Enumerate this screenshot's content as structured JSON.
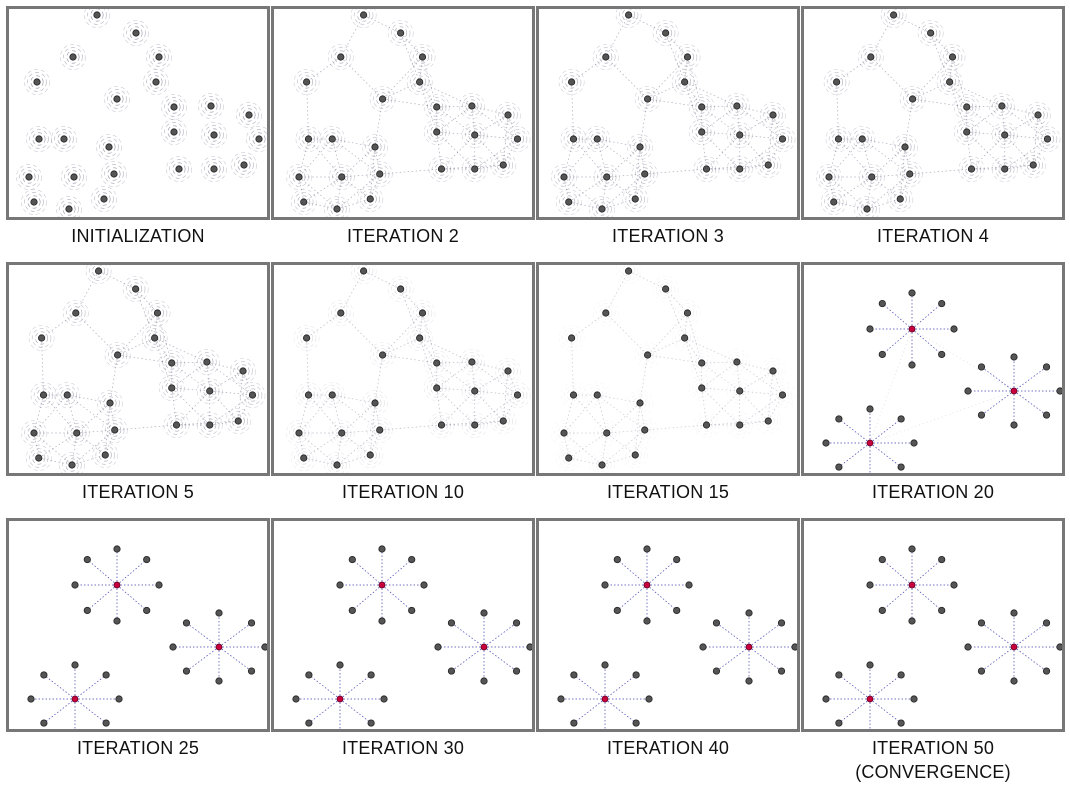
{
  "colors": {
    "frame_border": "#777777",
    "node_fill": "#555555",
    "node_stroke": "#222222",
    "arc_stroke": "#6b6b86",
    "link_stroke": "#3a3ab0",
    "center_fill": "#c8003c"
  },
  "panels": [
    {
      "caption": "INITIALIZATION",
      "caption2": "",
      "stage": "init"
    },
    {
      "caption": "ITERATION 2",
      "caption2": "",
      "stage": "mesh"
    },
    {
      "caption": "ITERATION 3",
      "caption2": "",
      "stage": "mesh"
    },
    {
      "caption": "ITERATION 4",
      "caption2": "",
      "stage": "mesh"
    },
    {
      "caption": "ITERATION 5",
      "caption2": "",
      "stage": "mesh"
    },
    {
      "caption": "ITERATION 10",
      "caption2": "",
      "stage": "mesh-light"
    },
    {
      "caption": "ITERATION 15",
      "caption2": "",
      "stage": "mesh-lighter"
    },
    {
      "caption": "ITERATION 20",
      "caption2": "",
      "stage": "clusters"
    },
    {
      "caption": "ITERATION 25",
      "caption2": "",
      "stage": "stars"
    },
    {
      "caption": "ITERATION 30",
      "caption2": "",
      "stage": "stars"
    },
    {
      "caption": "ITERATION 40",
      "caption2": "",
      "stage": "stars"
    },
    {
      "caption": "ITERATION 50",
      "caption2": "(CONVERGENCE)",
      "stage": "stars"
    }
  ]
}
